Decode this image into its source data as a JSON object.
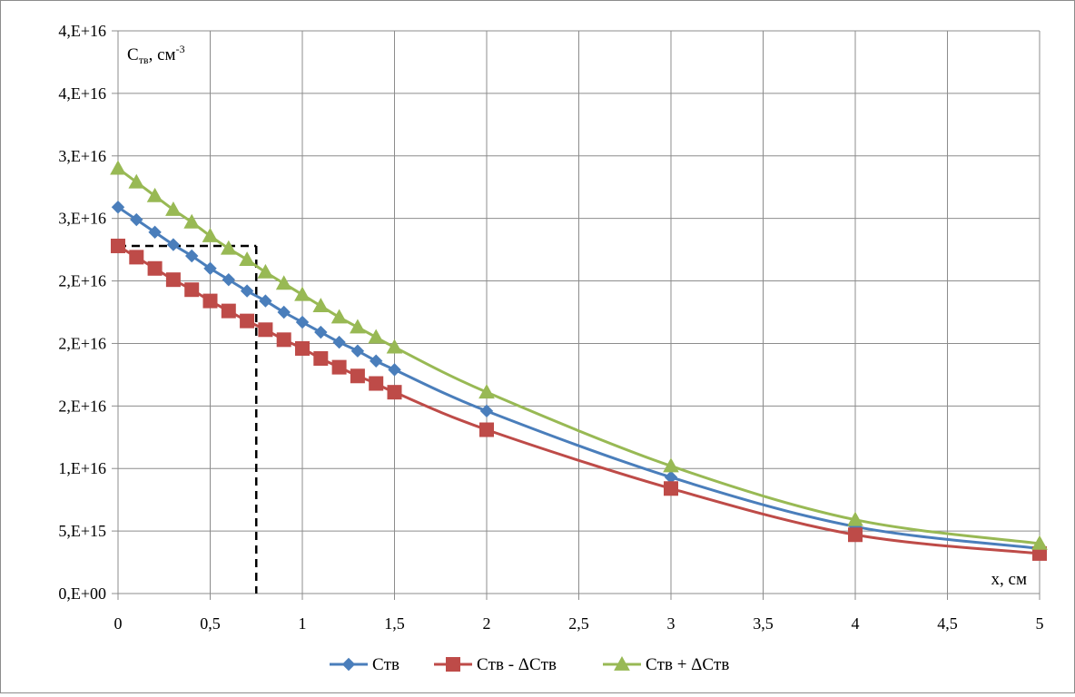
{
  "chart_data": {
    "type": "line",
    "ylabel": "Cтв, см",
    "ylabel_sub": "тв",
    "ylabel_sup": "-3",
    "ylabel_main": "C",
    "ylabel_rest": ", см",
    "xlabel": "x, см",
    "x_ticks": [
      "0",
      "0,5",
      "1",
      "1,5",
      "2",
      "2,5",
      "3",
      "3,5",
      "4",
      "4,5",
      "5"
    ],
    "y_ticks": [
      "0,E+00",
      "5,E+15",
      "1,E+16",
      "2,E+16",
      "2,E+16",
      "2,E+16",
      "3,E+16",
      "3,E+16",
      "4,E+16",
      "4,E+16"
    ],
    "xlim": [
      0,
      5
    ],
    "ylim": [
      0,
      4.5e+16
    ],
    "grid": true,
    "legend_position": "bottom",
    "x": [
      0,
      0.1,
      0.2,
      0.3,
      0.4,
      0.5,
      0.6,
      0.7,
      0.8,
      0.9,
      1.0,
      1.1,
      1.2,
      1.3,
      1.4,
      1.5,
      2,
      3,
      4,
      5
    ],
    "series": [
      {
        "name": "Cтв",
        "color": "#4a7ebb",
        "marker": "diamond",
        "values": [
          3.09e+16,
          2.99e+16,
          2.89e+16,
          2.79e+16,
          2.7e+16,
          2.6e+16,
          2.51e+16,
          2.42e+16,
          2.34e+16,
          2.25e+16,
          2.17e+16,
          2.09e+16,
          2.01e+16,
          1.94e+16,
          1.86e+16,
          1.79e+16,
          1.46e+16,
          9300000000000000.0,
          5350000000000000.0,
          3600000000000000.0
        ]
      },
      {
        "name": "Cтв - ΔCтв",
        "color": "#be4b48",
        "marker": "square",
        "values": [
          2.78e+16,
          2.69e+16,
          2.6e+16,
          2.51e+16,
          2.43e+16,
          2.34e+16,
          2.26e+16,
          2.18e+16,
          2.11e+16,
          2.03e+16,
          1.96e+16,
          1.88e+16,
          1.81e+16,
          1.74e+16,
          1.68e+16,
          1.61e+16,
          1.31e+16,
          8400000000000000.0,
          4700000000000000.0,
          3200000000000000.0
        ]
      },
      {
        "name": "Cтв + ΔCтв",
        "color": "#98b954",
        "marker": "triangle",
        "values": [
          3.4e+16,
          3.29e+16,
          3.18e+16,
          3.07e+16,
          2.97e+16,
          2.86e+16,
          2.76e+16,
          2.67e+16,
          2.57e+16,
          2.48e+16,
          2.39e+16,
          2.3e+16,
          2.21e+16,
          2.13e+16,
          2.05e+16,
          1.97e+16,
          1.61e+16,
          1.02e+16,
          5900000000000000.0,
          4000000000000000.0
        ]
      }
    ],
    "annotation": {
      "x": 0.75,
      "y": 2.78e+16
    }
  }
}
